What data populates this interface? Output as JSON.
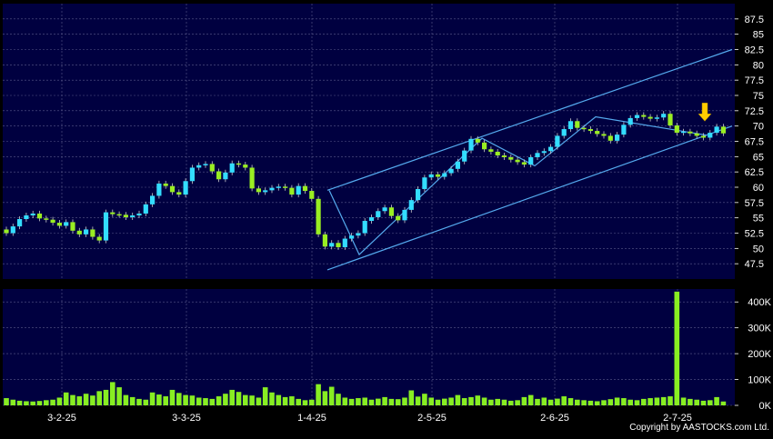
{
  "chart_data": {
    "type": "candlestick",
    "x_tick_labels": [
      "3-2-25",
      "3-3-25",
      "1-4-25",
      "2-5-25",
      "2-6-25",
      "2-7-25"
    ],
    "price_axis": {
      "ylim": [
        45,
        90
      ],
      "ticks": [
        47.5,
        50,
        52.5,
        55,
        57.5,
        60,
        62.5,
        65,
        67.5,
        70,
        72.5,
        75,
        77.5,
        80,
        82.5,
        85,
        87.5
      ]
    },
    "volume_axis": {
      "ylim": [
        0,
        450000
      ],
      "ticks": [
        0,
        100000,
        200000,
        300000,
        400000
      ],
      "tick_labels": [
        "0K",
        "100K",
        "200K",
        "300K",
        "400K"
      ]
    },
    "close": [
      52.5,
      53.6,
      54.8,
      55.4,
      55.7,
      54.9,
      54.7,
      54.2,
      53.7,
      54.3,
      52.9,
      52.3,
      53.1,
      51.9,
      51.3,
      55.9,
      55.6,
      55.5,
      55.1,
      55.4,
      55.7,
      57.2,
      58.6,
      60.6,
      60.2,
      59.2,
      58.8,
      61.0,
      63.2,
      63.6,
      63.8,
      62.6,
      61.3,
      62.4,
      63.9,
      63.7,
      63.2,
      59.8,
      59.2,
      59.5,
      59.9,
      60.1,
      59.9,
      58.8,
      60.2,
      59.4,
      58.1,
      52.3,
      50.3,
      50.9,
      50.2,
      51.6,
      52.1,
      52.5,
      54.5,
      55.1,
      56.1,
      56.7,
      55.3,
      54.6,
      56.3,
      57.9,
      59.7,
      61.6,
      62.1,
      61.7,
      62.3,
      63.0,
      64.2,
      66.0,
      67.9,
      67.3,
      66.2,
      65.8,
      65.2,
      64.9,
      64.5,
      64.1,
      63.7,
      64.9,
      65.6,
      65.9,
      66.6,
      68.4,
      69.5,
      70.8,
      69.7,
      69.5,
      69.2,
      68.7,
      68.4,
      67.6,
      68.6,
      70.2,
      71.3,
      71.8,
      71.5,
      71.2,
      71.4,
      72.0,
      70.1,
      68.9,
      69.1,
      68.8,
      68.4,
      68.1,
      68.9,
      69.9,
      68.8
    ],
    "change": [
      -1,
      1,
      1,
      1,
      1,
      -1,
      -1,
      -1,
      -1,
      1,
      -1,
      -1,
      1,
      -1,
      -1,
      1,
      -1,
      -1,
      -1,
      1,
      1,
      1,
      1,
      1,
      -1,
      -1,
      -1,
      1,
      1,
      1,
      1,
      -1,
      -1,
      1,
      1,
      -1,
      -1,
      -1,
      -1,
      1,
      1,
      1,
      -1,
      -1,
      1,
      -1,
      -1,
      -1,
      -1,
      1,
      -1,
      1,
      1,
      1,
      1,
      1,
      1,
      1,
      -1,
      -1,
      1,
      1,
      1,
      1,
      1,
      -1,
      1,
      1,
      1,
      1,
      1,
      -1,
      -1,
      -1,
      -1,
      -1,
      -1,
      -1,
      -1,
      1,
      1,
      1,
      1,
      1,
      1,
      1,
      -1,
      -1,
      -1,
      -1,
      -1,
      -1,
      1,
      1,
      1,
      1,
      -1,
      -1,
      1,
      1,
      -1,
      -1,
      1,
      -1,
      -1,
      -1,
      1,
      1,
      -1
    ],
    "volume": [
      28000,
      22000,
      18000,
      16000,
      15000,
      17000,
      20000,
      22000,
      30000,
      50000,
      40000,
      35000,
      45000,
      38000,
      55000,
      60000,
      90000,
      70000,
      40000,
      32000,
      25000,
      22000,
      50000,
      42000,
      35000,
      60000,
      48000,
      40000,
      38000,
      30000,
      28000,
      25000,
      35000,
      45000,
      60000,
      52000,
      40000,
      38000,
      30000,
      70000,
      50000,
      40000,
      32000,
      35000,
      25000,
      20000,
      22000,
      82000,
      55000,
      72000,
      45000,
      30000,
      25000,
      28000,
      30000,
      22000,
      26000,
      32000,
      25000,
      24000,
      30000,
      58000,
      34000,
      45000,
      30000,
      22000,
      26000,
      30000,
      40000,
      28000,
      32000,
      38000,
      30000,
      22000,
      25000,
      22000,
      18000,
      20000,
      32000,
      40000,
      25000,
      30000,
      22000,
      26000,
      35000,
      28000,
      22000,
      20000,
      18000,
      16000,
      20000,
      24000,
      30000,
      28000,
      22000,
      20000,
      25000,
      28000,
      30000,
      32000,
      35000,
      440000,
      30000,
      25000,
      22000,
      18000,
      20000,
      32000,
      15000
    ],
    "annotations": {
      "channel_lines": [
        {
          "from": [
            "1-4-25",
            59.5
          ],
          "to": [
            "2-7-25",
            82.5
          ],
          "role": "upper channel line"
        },
        {
          "from": [
            "1-4-25",
            46.5
          ],
          "to": [
            "2-7-25",
            70.0
          ],
          "role": "lower channel line"
        }
      ],
      "zigzag_line": [
        59.5,
        49.0,
        68.0,
        63.5,
        71.5,
        68.5
      ],
      "arrow": {
        "direction": "down",
        "at_value": 70.5,
        "color": "#ffcc00"
      }
    },
    "grid": true,
    "copyright": "Copyright by AASTOCKS.com Ltd."
  },
  "colors": {
    "background": "#000000",
    "plot_bg": "#000040",
    "grid": "#5a5a8a",
    "axis_text": "#ffffff",
    "up": "#33ddff",
    "down": "#99ee22",
    "volume": "#88ee22",
    "line": "#55aaee",
    "arrow": "#ffcc00"
  }
}
